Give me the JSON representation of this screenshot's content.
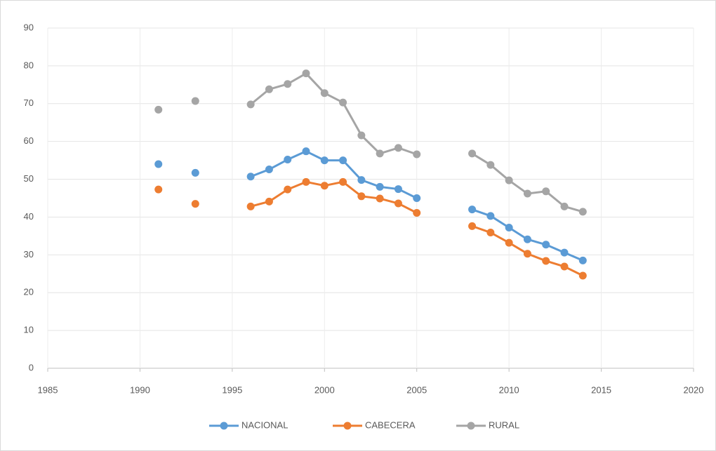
{
  "chart_data": {
    "type": "line",
    "x": [
      1991,
      1992,
      1993,
      1994,
      1995,
      1996,
      1997,
      1998,
      1999,
      2000,
      2001,
      2002,
      2003,
      2004,
      2005,
      2006,
      2007,
      2008,
      2009,
      2010,
      2011,
      2012,
      2013,
      2014
    ],
    "series": [
      {
        "name": "NACIONAL",
        "color": "#5b9bd5",
        "values": [
          54,
          null,
          51.7,
          null,
          null,
          50.7,
          52.6,
          55.2,
          57.4,
          55,
          55,
          49.8,
          48,
          47.4,
          45,
          null,
          null,
          42,
          40.3,
          37.2,
          34.1,
          32.7,
          30.6,
          28.5
        ]
      },
      {
        "name": "CABECERA",
        "color": "#ed7d31",
        "values": [
          47.3,
          null,
          43.5,
          null,
          null,
          42.8,
          44.1,
          47.3,
          49.3,
          48.3,
          49.3,
          45.5,
          44.9,
          43.6,
          41.1,
          null,
          null,
          37.6,
          35.9,
          33.2,
          30.3,
          28.4,
          26.9,
          24.5
        ]
      },
      {
        "name": "RURAL",
        "color": "#a5a5a5",
        "values": [
          68.4,
          null,
          70.7,
          null,
          null,
          69.8,
          73.8,
          75.2,
          78,
          72.8,
          70.3,
          61.6,
          56.8,
          58.3,
          56.6,
          null,
          null,
          56.8,
          53.8,
          49.7,
          46.2,
          46.8,
          42.8,
          41.4
        ]
      }
    ],
    "xlim": [
      1985,
      2020
    ],
    "xticks": [
      1985,
      1990,
      1995,
      2000,
      2005,
      2010,
      2015,
      2020
    ],
    "ylim": [
      0,
      90
    ],
    "yticks": [
      0,
      10,
      20,
      30,
      40,
      50,
      60,
      70,
      80,
      90
    ],
    "grid": true,
    "legend": "bottom"
  }
}
